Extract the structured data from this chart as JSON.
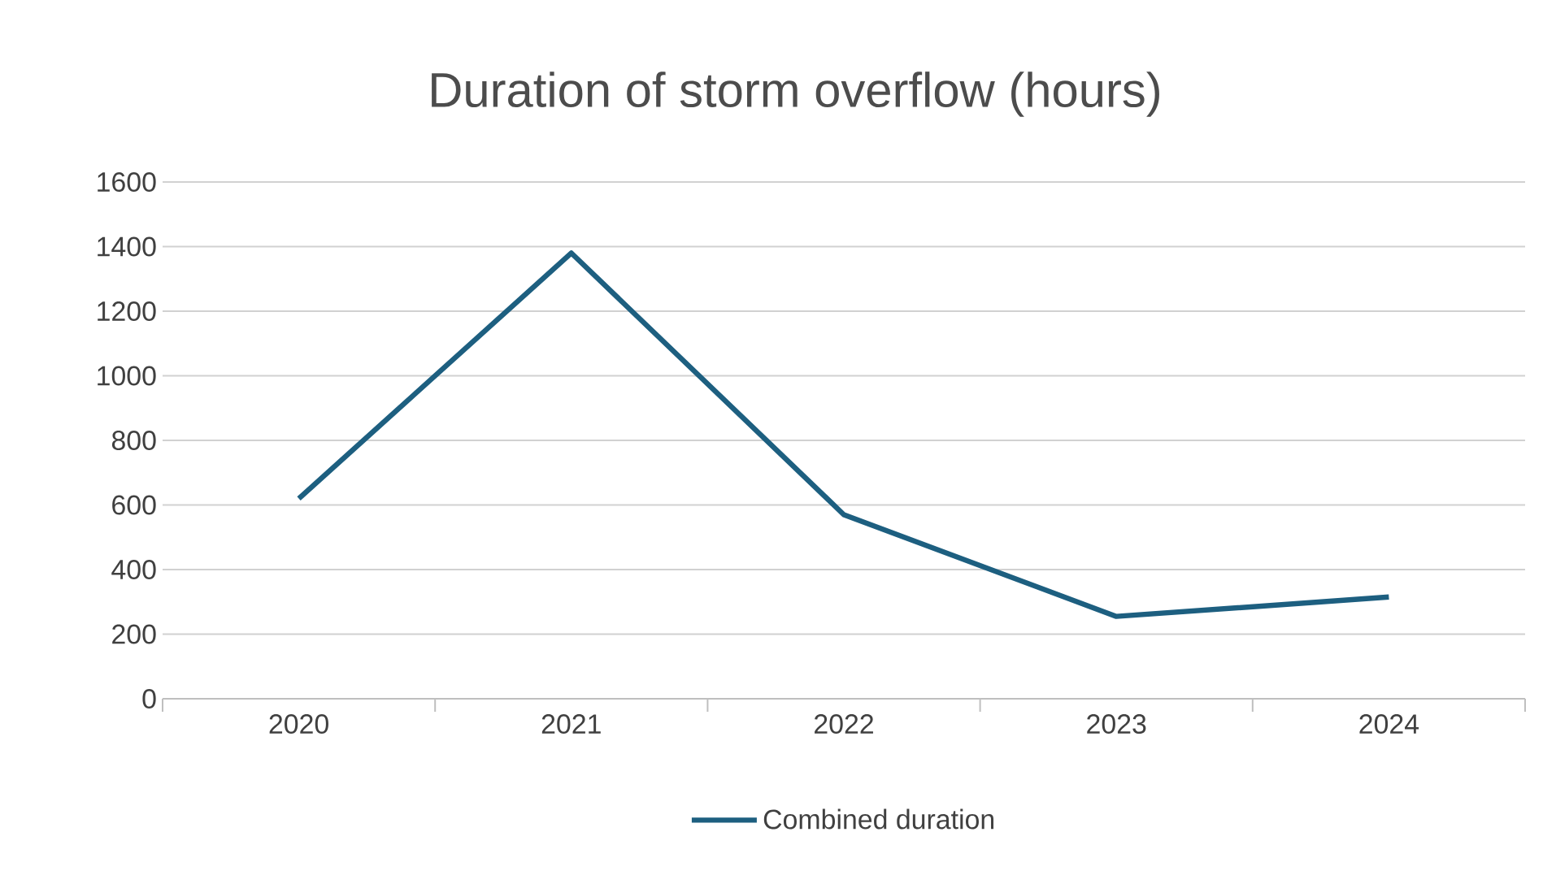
{
  "chart_data": {
    "type": "line",
    "title": "Duration of storm overflow (hours)",
    "categories": [
      "2020",
      "2021",
      "2022",
      "2023",
      "2024"
    ],
    "series": [
      {
        "name": "Combined duration",
        "color": "#1d5f80",
        "values": [
          620,
          1380,
          570,
          255,
          315
        ]
      }
    ],
    "ylim": [
      0,
      1600
    ],
    "yticks": [
      0,
      200,
      400,
      600,
      800,
      1000,
      1200,
      1400,
      1600
    ],
    "grid": "y",
    "legend": "bottom",
    "marker": "none",
    "line_style": "solid"
  }
}
